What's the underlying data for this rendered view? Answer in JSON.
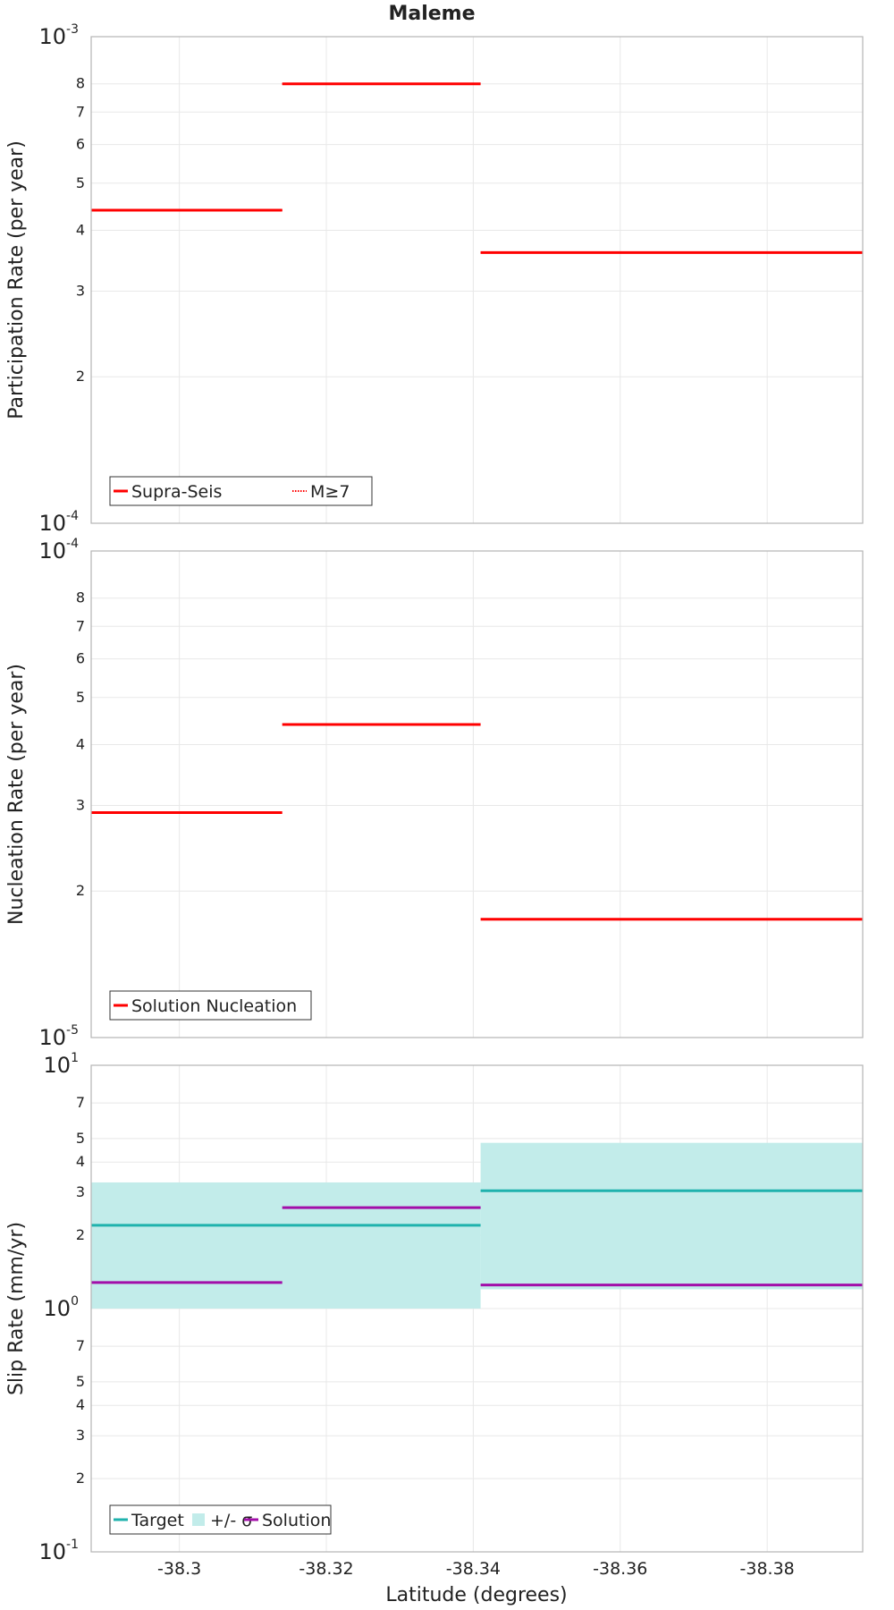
{
  "figure": {
    "title": "Maleme",
    "xlabel": "Latitude (degrees)",
    "xticks": [
      "-38.3",
      "-38.32",
      "-38.34",
      "-38.36",
      "-38.38"
    ]
  },
  "colors": {
    "red": "#ff0000",
    "target": "#1fb2ad",
    "sigma_fill": "#c2ecea",
    "solution": "#a20ea9",
    "grid": "#e8e8e8",
    "frame": "#b4b4b4"
  },
  "chart_data": [
    {
      "type": "line",
      "ylabel": "Participation Rate (per year)",
      "yscale": "log",
      "ylim": [
        0.0001,
        0.001
      ],
      "xlim": [
        -38.288,
        -38.393
      ],
      "ytick_labels": {
        "major": [
          {
            "value": 0.001,
            "base": "10",
            "exp": "-3"
          },
          {
            "value": 0.0001,
            "base": "10",
            "exp": "-4"
          }
        ],
        "minor": [
          {
            "value": 0.0008,
            "label": "8"
          },
          {
            "value": 0.0007,
            "label": "7"
          },
          {
            "value": 0.0006,
            "label": "6"
          },
          {
            "value": 0.0005,
            "label": "5"
          },
          {
            "value": 0.0004,
            "label": "4"
          },
          {
            "value": 0.0003,
            "label": "3"
          },
          {
            "value": 0.0002,
            "label": "2"
          }
        ]
      },
      "series": [
        {
          "name": "Supra-Seis",
          "style": "solid",
          "segments": [
            {
              "x": [
                -38.288,
                -38.314
              ],
              "y": 0.00044
            },
            {
              "x": [
                -38.314,
                -38.341
              ],
              "y": 0.0008
            },
            {
              "x": [
                -38.341,
                -38.393
              ],
              "y": 0.00036
            }
          ]
        },
        {
          "name": "M≥7",
          "style": "dotted",
          "segments": [
            {
              "x": [
                -38.288,
                -38.314
              ],
              "y": 0.00044
            },
            {
              "x": [
                -38.314,
                -38.341
              ],
              "y": 0.0008
            },
            {
              "x": [
                -38.341,
                -38.393
              ],
              "y": 0.00036
            }
          ]
        }
      ],
      "legend": [
        "Supra-Seis",
        "M≥7"
      ],
      "legend_position": "bottom-left"
    },
    {
      "type": "line",
      "ylabel": "Nucleation Rate (per year)",
      "yscale": "log",
      "ylim": [
        1e-05,
        0.0001
      ],
      "xlim": [
        -38.288,
        -38.393
      ],
      "ytick_labels": {
        "major": [
          {
            "value": 0.0001,
            "base": "10",
            "exp": "-4"
          },
          {
            "value": 1e-05,
            "base": "10",
            "exp": "-5"
          }
        ],
        "minor": [
          {
            "value": 8e-05,
            "label": "8"
          },
          {
            "value": 7e-05,
            "label": "7"
          },
          {
            "value": 6e-05,
            "label": "6"
          },
          {
            "value": 5e-05,
            "label": "5"
          },
          {
            "value": 4e-05,
            "label": "4"
          },
          {
            "value": 3e-05,
            "label": "3"
          },
          {
            "value": 2e-05,
            "label": "2"
          }
        ]
      },
      "series": [
        {
          "name": "Solution Nucleation",
          "style": "solid",
          "segments": [
            {
              "x": [
                -38.288,
                -38.314
              ],
              "y": 2.9e-05
            },
            {
              "x": [
                -38.314,
                -38.341
              ],
              "y": 4.4e-05
            },
            {
              "x": [
                -38.341,
                -38.393
              ],
              "y": 1.75e-05
            }
          ]
        }
      ],
      "legend": [
        "Solution Nucleation"
      ],
      "legend_position": "bottom-left"
    },
    {
      "type": "line",
      "ylabel": "Slip Rate (mm/yr)",
      "yscale": "log",
      "ylim": [
        0.1,
        10
      ],
      "xlim": [
        -38.288,
        -38.393
      ],
      "ytick_labels": {
        "major": [
          {
            "value": 10,
            "base": "10",
            "exp": "1"
          },
          {
            "value": 1,
            "base": "10",
            "exp": "0"
          },
          {
            "value": 0.1,
            "base": "10",
            "exp": "-1"
          }
        ],
        "minor": [
          {
            "value": 7,
            "label": "7"
          },
          {
            "value": 5,
            "label": "5"
          },
          {
            "value": 4,
            "label": "4"
          },
          {
            "value": 3,
            "label": "3"
          },
          {
            "value": 2,
            "label": "2"
          },
          {
            "value": 0.7,
            "label": "7"
          },
          {
            "value": 0.5,
            "label": "5"
          },
          {
            "value": 0.4,
            "label": "4"
          },
          {
            "value": 0.3,
            "label": "3"
          },
          {
            "value": 0.2,
            "label": "2"
          }
        ]
      },
      "bands": [
        {
          "name": "+/- σ",
          "segments": [
            {
              "x": [
                -38.288,
                -38.341
              ],
              "y": [
                1.0,
                3.3
              ]
            },
            {
              "x": [
                -38.341,
                -38.393
              ],
              "y": [
                1.2,
                4.8
              ]
            }
          ]
        }
      ],
      "series": [
        {
          "name": "Target",
          "style": "solid",
          "segments": [
            {
              "x": [
                -38.288,
                -38.341
              ],
              "y": 2.2
            },
            {
              "x": [
                -38.341,
                -38.393
              ],
              "y": 3.05
            }
          ]
        },
        {
          "name": "Solution",
          "style": "solid",
          "segments": [
            {
              "x": [
                -38.288,
                -38.314
              ],
              "y": 1.28
            },
            {
              "x": [
                -38.314,
                -38.341
              ],
              "y": 2.6
            },
            {
              "x": [
                -38.341,
                -38.393
              ],
              "y": 1.25
            }
          ]
        }
      ],
      "legend": [
        "Target",
        "+/- σ",
        "Solution"
      ],
      "legend_position": "bottom-left"
    }
  ]
}
